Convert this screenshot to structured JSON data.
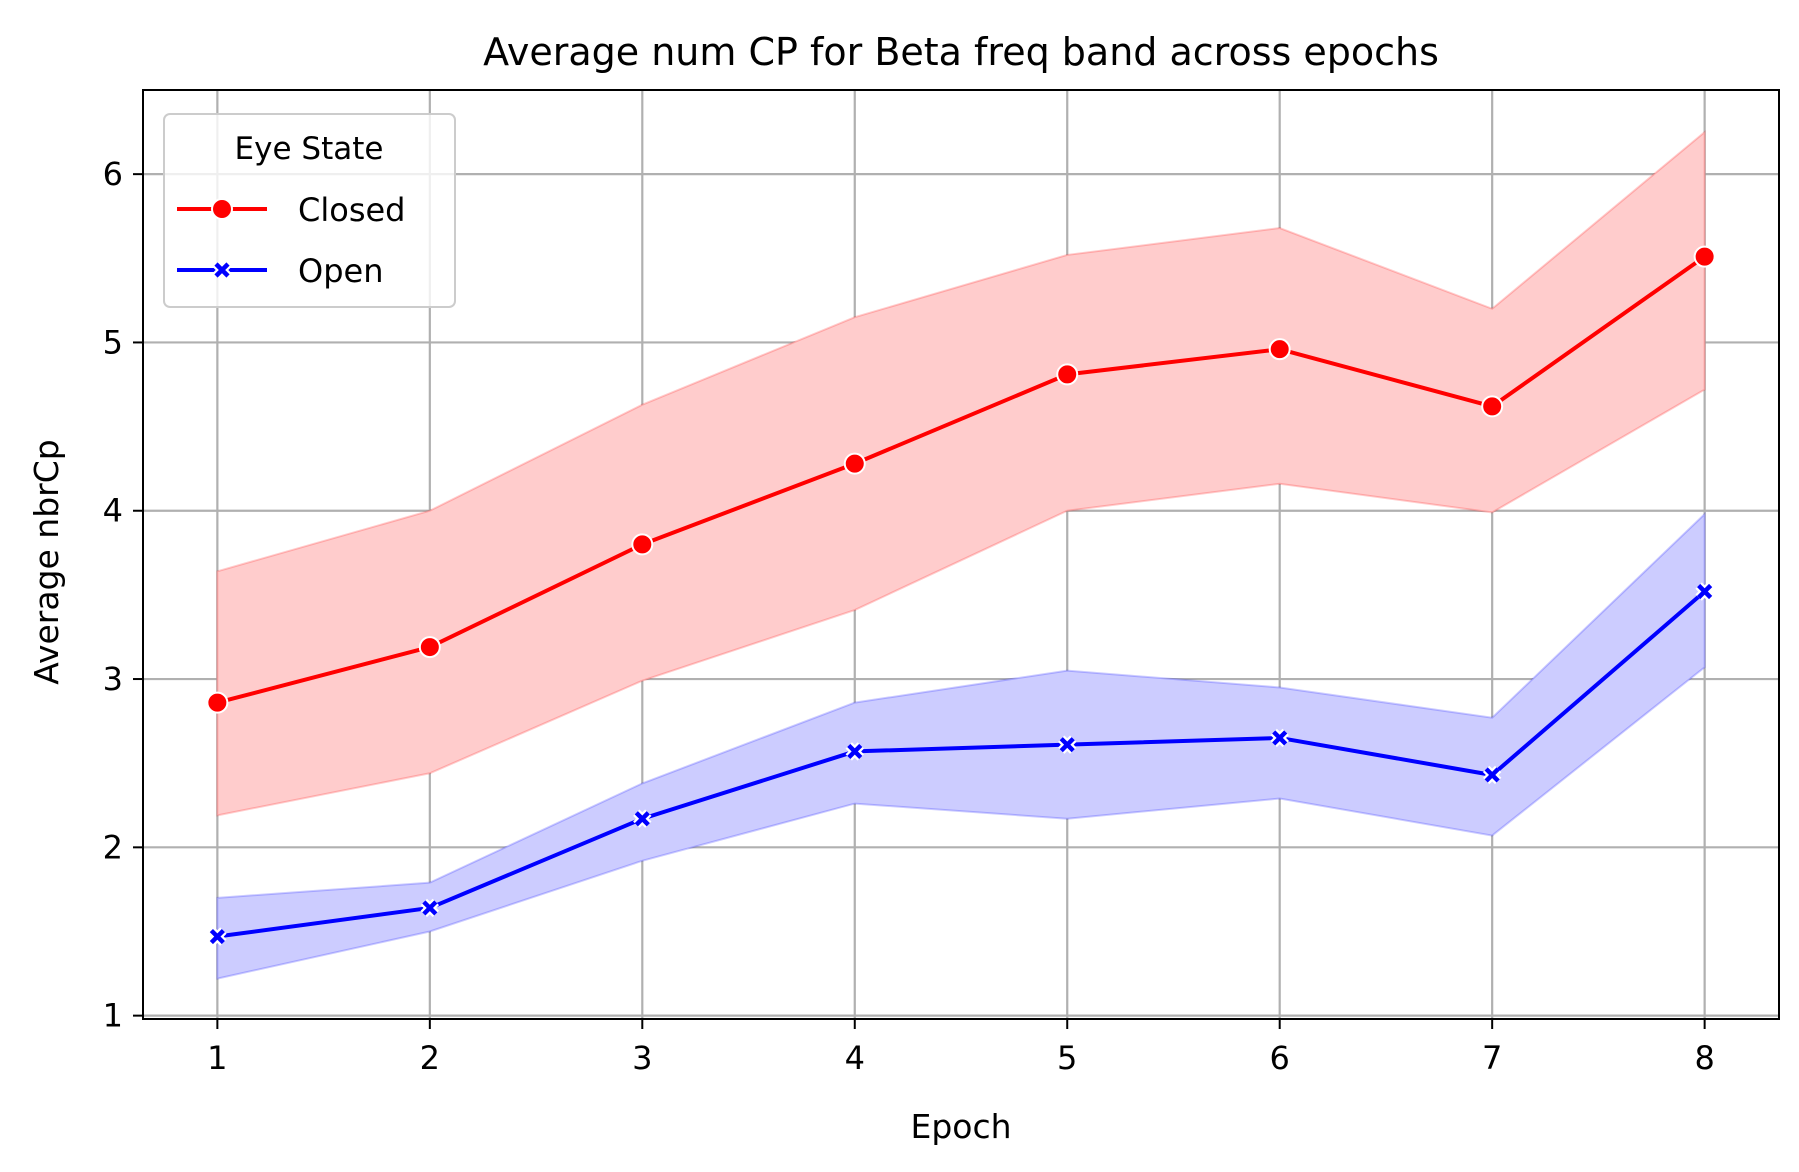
{
  "chart_data": {
    "type": "line",
    "title": "Average num CP for Beta freq band across epochs",
    "xlabel": "Epoch",
    "ylabel": "Average nbrCp",
    "x": [
      1,
      2,
      3,
      4,
      5,
      6,
      7,
      8
    ],
    "xlim": [
      0.65,
      8.35
    ],
    "ylim": [
      0.98,
      6.5
    ],
    "xticks": [
      "1",
      "2",
      "3",
      "4",
      "5",
      "6",
      "7",
      "8"
    ],
    "yticks": [
      "1",
      "2",
      "3",
      "4",
      "5",
      "6"
    ],
    "grid": true,
    "legend": {
      "title": "Eye State",
      "placement": "top-left"
    },
    "series": [
      {
        "name": "Closed",
        "color": "#ff0000",
        "fill_color": "#ffcccc",
        "marker": "circle",
        "values": [
          2.86,
          3.19,
          3.8,
          4.28,
          4.81,
          4.96,
          4.62,
          5.51
        ],
        "ci_lower": [
          2.19,
          2.44,
          2.99,
          3.41,
          4.0,
          4.16,
          3.99,
          4.72
        ],
        "ci_upper": [
          3.64,
          4.0,
          4.63,
          5.15,
          5.52,
          5.68,
          5.2,
          6.25
        ]
      },
      {
        "name": "Open",
        "color": "#0000ff",
        "fill_color": "#ccccff",
        "marker": "x",
        "values": [
          1.47,
          1.64,
          2.17,
          2.57,
          2.61,
          2.65,
          2.43,
          3.52
        ],
        "ci_lower": [
          1.22,
          1.5,
          1.92,
          2.26,
          2.17,
          2.29,
          2.07,
          3.07
        ],
        "ci_upper": [
          1.7,
          1.79,
          2.38,
          2.86,
          3.05,
          2.95,
          2.77,
          3.98
        ]
      }
    ]
  }
}
